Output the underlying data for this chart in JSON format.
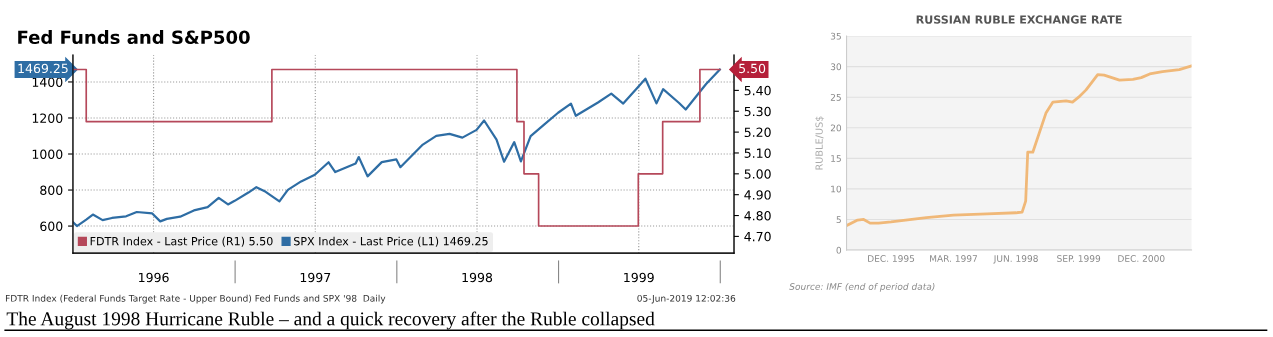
{
  "chart_data": [
    {
      "type": "line",
      "title": "Fed Funds and S&P500",
      "xlim": [
        "1996-01-01",
        "2000-02-01"
      ],
      "xticks": [
        {
          "value": "1996-07-01",
          "label": "1996"
        },
        {
          "value": "1997-07-01",
          "label": "1997"
        },
        {
          "value": "1998-07-01",
          "label": "1998"
        },
        {
          "value": "1999-07-01",
          "label": "1999"
        }
      ],
      "ylim": [
        450,
        1550
      ],
      "yticks": [
        600,
        800,
        1000,
        1200,
        1400
      ],
      "y2lim": [
        4.62,
        5.57
      ],
      "y2ticks": [
        {
          "value": 4.7,
          "label": "4.70"
        },
        {
          "value": 4.8,
          "label": "4.80"
        },
        {
          "value": 4.9,
          "label": "4.90"
        },
        {
          "value": 5.0,
          "label": "5.00"
        },
        {
          "value": 5.1,
          "label": "5.10"
        },
        {
          "value": 5.2,
          "label": "5.20"
        },
        {
          "value": 5.3,
          "label": "5.30"
        },
        {
          "value": 5.4,
          "label": "5.40"
        }
      ],
      "grid": true,
      "legend": "bottom left",
      "series": [
        {
          "name": "FDTR Index - Last Price (R1) 5.50",
          "type": "step",
          "axis": "y2",
          "color": "#b5485a",
          "x": [
            "1996-01-02",
            "1996-01-31",
            "1997-03-25",
            "1998-09-29",
            "1998-10-15",
            "1998-11-17",
            "1999-06-30",
            "1999-08-24",
            "1999-11-16",
            "1999-12-31"
          ],
          "values": [
            5.5,
            5.25,
            5.5,
            5.25,
            5.0,
            4.75,
            5.0,
            5.25,
            5.5,
            5.5
          ]
        },
        {
          "name": "SPX Index - Last Price (L1) 1469.25",
          "type": "line",
          "color": "#2e6da4",
          "x": [
            "1996-01-02",
            "1996-01-10",
            "1996-01-31",
            "1996-02-15",
            "1996-03-08",
            "1996-03-29",
            "1996-04-30",
            "1996-05-24",
            "1996-06-28",
            "1996-07-16",
            "1996-07-31",
            "1996-08-30",
            "1996-09-30",
            "1996-10-31",
            "1996-11-25",
            "1996-12-16",
            "1996-12-31",
            "1997-01-31",
            "1997-02-18",
            "1997-03-11",
            "1997-04-11",
            "1997-04-30",
            "1997-05-30",
            "1997-06-30",
            "1997-07-31",
            "1997-08-15",
            "1997-09-30",
            "1997-10-07",
            "1997-10-27",
            "1997-11-28",
            "1997-12-31",
            "1998-01-09",
            "1998-02-27",
            "1998-03-31",
            "1998-04-30",
            "1998-05-29",
            "1998-06-30",
            "1998-07-17",
            "1998-08-14",
            "1998-08-31",
            "1998-09-23",
            "1998-10-08",
            "1998-10-30",
            "1998-11-30",
            "1998-12-31",
            "1999-01-29",
            "1999-02-09",
            "1999-03-31",
            "1999-04-30",
            "1999-05-27",
            "1999-06-30",
            "1999-07-16",
            "1999-08-10",
            "1999-08-25",
            "1999-09-30",
            "1999-10-15",
            "1999-11-30",
            "1999-12-31"
          ],
          "values": [
            620,
            600,
            636,
            664,
            633,
            645,
            654,
            678,
            670,
            626,
            640,
            652,
            687,
            705,
            757,
            720,
            740,
            786,
            816,
            790,
            737,
            801,
            848,
            885,
            954,
            900,
            947,
            983,
            876,
            955,
            970,
            927,
            1049,
            1101,
            1112,
            1091,
            1134,
            1186,
            1080,
            957,
            1066,
            959,
            1099,
            1164,
            1229,
            1280,
            1212,
            1286,
            1335,
            1280,
            1373,
            1418,
            1281,
            1360,
            1283,
            1247,
            1389,
            1469.25
          ]
        }
      ],
      "annotations": [
        "FDTR Index (Federal Funds Target Rate - Upper Bound) Fed Funds and SPX '98  Daily",
        "05-Jun-2019 12:02:36",
        "1469.25",
        "5.50"
      ]
    },
    {
      "type": "line",
      "title": "RUSSIAN RUBLE EXCHANGE RATE",
      "ylabel": "RUBLE/US$",
      "xlim": [
        "1995-01-10",
        "2001-12-03"
      ],
      "xticks": [
        {
          "value": "1995-12-01",
          "label": "DEC. 1995"
        },
        {
          "value": "1997-03-01",
          "label": "MAR. 1997"
        },
        {
          "value": "1998-06-01",
          "label": "JUN. 1998"
        },
        {
          "value": "1999-09-01",
          "label": "SEP. 1999"
        },
        {
          "value": "2000-12-01",
          "label": "DEC. 2000"
        }
      ],
      "ylim": [
        0,
        35
      ],
      "yticks": [
        0,
        5,
        10,
        15,
        20,
        25,
        30,
        35
      ],
      "grid": "y",
      "series": [
        {
          "color": "#f0b878",
          "x": [
            "1995-01-10",
            "1995-04-01",
            "1995-05-15",
            "1995-07-01",
            "1995-09-01",
            "1995-12-01",
            "1996-08-15",
            "1997-03-01",
            "1997-11-01",
            "1998-06-01",
            "1998-07-15",
            "1998-08-10",
            "1998-08-25",
            "1998-10-01",
            "1999-01-05",
            "1999-02-25",
            "1999-06-01",
            "1999-07-18",
            "1999-09-01",
            "1999-10-25",
            "2000-01-18",
            "2000-03-05",
            "2000-06-25",
            "2000-10-01",
            "2000-12-01",
            "2001-02-01",
            "2001-05-05",
            "2001-09-05",
            "2001-12-01"
          ],
          "values": [
            4.0,
            4.9,
            5.0,
            4.4,
            4.4,
            4.6,
            5.3,
            5.7,
            5.9,
            6.1,
            6.2,
            8.0,
            16.0,
            16.0,
            22.4,
            24.2,
            24.4,
            24.2,
            25.0,
            26.2,
            28.7,
            28.6,
            27.8,
            27.9,
            28.2,
            28.8,
            29.2,
            29.5,
            30.1
          ]
        }
      ],
      "annotations": [
        "Source: IMF (end of period data)",
        "The August 1998 Hurricane Ruble – and a quick recovery after the Ruble collapsed"
      ]
    }
  ]
}
